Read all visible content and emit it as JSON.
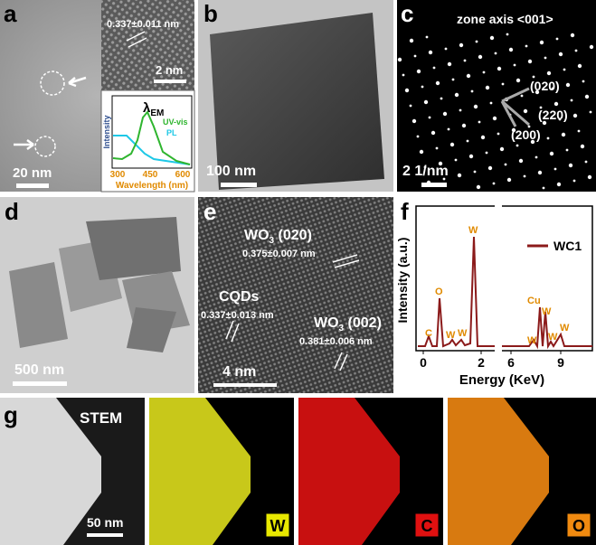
{
  "panels": {
    "a": {
      "label": "a",
      "scale_bar": "20 nm",
      "inset_spacing": "0.337±0.011 nm",
      "inset_scale": "2 nm",
      "inset_chart": {
        "y_label": "Intensity",
        "x_label": "Wavelength (nm)",
        "xticks": [
          "300",
          "450",
          "600"
        ],
        "annotation": "λ",
        "annotation_sub": "EM",
        "legend": [
          "UV-vis",
          "PL"
        ]
      }
    },
    "b": {
      "label": "b",
      "scale_bar": "100 nm"
    },
    "c": {
      "label": "c",
      "zone_axis": "zone axis <001>",
      "spots": [
        "(020)",
        "(220)",
        "(200)"
      ],
      "scale_bar": "2 1/nm"
    },
    "d": {
      "label": "d",
      "scale_bar": "500 nm"
    },
    "e": {
      "label": "e",
      "wo3_020": {
        "formula": "WO",
        "sub": "3",
        "plane": " (020)",
        "spacing": "0.375±0.007 nm"
      },
      "cqds": {
        "name": "CQDs",
        "spacing": "0.337±0.013 nm"
      },
      "wo3_002": {
        "formula": "WO",
        "sub": "3",
        "plane": " (002)",
        "spacing": "0.381±0.006 nm"
      },
      "scale_bar": "4 nm"
    },
    "f": {
      "label": "f",
      "y_label": "Intensity (a.u.)",
      "x_label": "Energy (KeV)",
      "xticks": [
        "0",
        "2",
        "6",
        "9"
      ],
      "legend": "WC1",
      "peaks": [
        "C",
        "O",
        "W",
        "W",
        "W",
        "Cu",
        "W",
        "W",
        "W",
        "W"
      ]
    },
    "g": {
      "label": "g",
      "maps": [
        "STEM",
        "W",
        "C",
        "O"
      ],
      "scale_bar": "50 nm"
    }
  }
}
